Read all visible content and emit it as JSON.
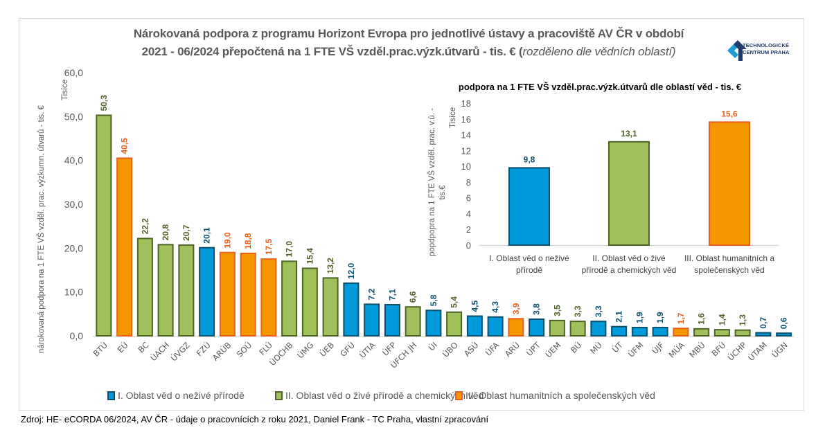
{
  "title": {
    "line1": "Nárokovaná podpora z programu Horizont Evropa pro jednotlivé ústavy a pracoviště AV ČR  v období",
    "line2_main": "2021 - 06/2024 přepočtená na 1 FTE VŠ vzděl.prac.výzk.útvarů - tis. € (",
    "line2_italic": "rozděleno dle vědních oblastí",
    "line2_end": ")"
  },
  "logo": {
    "icon": "tc-praha-logo-icon",
    "line1": "TECHNOLOGICKÉ",
    "line2": "CENTRUM PRAHA"
  },
  "colors": {
    "I": {
      "fill": "#009ADA",
      "stroke": "#0B4F6C",
      "label": "#0B4F6C"
    },
    "II": {
      "fill": "#9FC05A",
      "stroke": "#4F6228",
      "label": "#4F6228"
    },
    "III": {
      "fill": "#F39700",
      "stroke": "#E8601C",
      "label": "#E8601C"
    }
  },
  "chart_data": [
    {
      "type": "bar",
      "title": "Nárokovaná podpora z programu Horizont Evropa pro jednotlivé ústavy a pracoviště AV ČR v období 2021 - 06/2024 přepočtená na 1 FTE VŠ vzděl.prac.výzk.útvarů - tis. € (rozděleno dle vědních oblastí)",
      "ylabel": "nárokovaná podpora na 1 FTE VŠ vzděl. prac. výzkumn. útvarů - tis. €",
      "yunit_label": "Tisíce",
      "xlabel": "",
      "ylim": [
        0,
        60
      ],
      "yticks": [
        "0,0",
        "10,0",
        "20,0",
        "30,0",
        "40,0",
        "50,0",
        "60,0"
      ],
      "grid": false,
      "legend_position": "bottom",
      "legend": [
        {
          "key": "I",
          "label": "I. Oblast věd o neživé přírodě"
        },
        {
          "key": "II",
          "label": "II. Oblast věd o živé přírodě a chemických věd"
        },
        {
          "key": "III",
          "label": "III. Oblast humanitních a společenských věd"
        }
      ],
      "categories": [
        "BTÚ",
        "EÚ",
        "BC",
        "ÚACH",
        "ÚVGZ",
        "FZÚ",
        "ARÚB",
        "SOÚ",
        "FLÚ",
        "ÚOCHB",
        "ÚMG",
        "ÚEB",
        "GFÚ",
        "ÚTIA",
        "ÚFP",
        "ÚFCH JH",
        "ÚI",
        "ÚBO",
        "ASÚ",
        "ÚFA",
        "ARÚ",
        "ÚPT",
        "ÚEM",
        "BÚ",
        "MÚ",
        "ÚT",
        "ÚFM",
        "ÚJF",
        "MÚA",
        "MBÚ",
        "BFÚ",
        "ÚCHP",
        "ÚTAM",
        "ÚGN"
      ],
      "values": [
        50.3,
        40.5,
        22.2,
        20.8,
        20.7,
        20.1,
        19.0,
        18.8,
        17.5,
        17.0,
        15.4,
        13.2,
        12.0,
        7.2,
        7.1,
        6.6,
        5.8,
        5.4,
        4.5,
        4.3,
        3.9,
        3.8,
        3.5,
        3.3,
        3.3,
        2.1,
        1.9,
        1.9,
        1.7,
        1.6,
        1.4,
        1.3,
        0.7,
        0.6
      ],
      "value_labels": [
        "50,3",
        "40,5",
        "22,2",
        "20,8",
        "20,7",
        "20,1",
        "19,0",
        "18,8",
        "17,5",
        "17,0",
        "15,4",
        "13,2",
        "12,0",
        "7,2",
        "7,1",
        "6,6",
        "5,8",
        "5,4",
        "4,5",
        "4,3",
        "3,9",
        "3,8",
        "3,5",
        "3,3",
        "3,3",
        "2,1",
        "1,9",
        "1,9",
        "1,7",
        "1,6",
        "1,4",
        "1,3",
        "0,7",
        "0,6"
      ],
      "groups": [
        "II",
        "III",
        "II",
        "II",
        "II",
        "I",
        "III",
        "III",
        "III",
        "II",
        "II",
        "II",
        "I",
        "I",
        "I",
        "II",
        "I",
        "II",
        "I",
        "I",
        "III",
        "I",
        "II",
        "II",
        "I",
        "I",
        "I",
        "I",
        "III",
        "II",
        "II",
        "II",
        "I",
        "I"
      ]
    },
    {
      "type": "bar",
      "title": "podpora na 1 FTE VŠ vzděl.prac.výzk.útvarů dle oblastí věd - tis. €",
      "ylabel": "popdpopra na 1 FTE VŠ vzděl. prac. v.ú. - tis.€",
      "yunit_label": "Tisíce",
      "ylim": [
        0,
        18
      ],
      "yticks": [
        "0",
        "2",
        "4",
        "6",
        "8",
        "10",
        "12",
        "14",
        "16",
        "18"
      ],
      "grid": false,
      "categories": [
        [
          "I. Oblast věd o neživé",
          "přírodě"
        ],
        [
          "II. Oblast věd o živé",
          "přírodě a chemických věd"
        ],
        [
          "III. Oblast humanitních a",
          "společenských věd"
        ]
      ],
      "values": [
        9.8,
        13.1,
        15.6
      ],
      "value_labels": [
        "9,8",
        "13,1",
        "15,6"
      ],
      "groups": [
        "I",
        "II",
        "III"
      ]
    }
  ],
  "source": "Zdroj: HE- eCORDA 06/2024, AV ČR -  údaje o pracovnících z roku 2021, Daniel Frank - TC Praha, vlastní zpracování"
}
